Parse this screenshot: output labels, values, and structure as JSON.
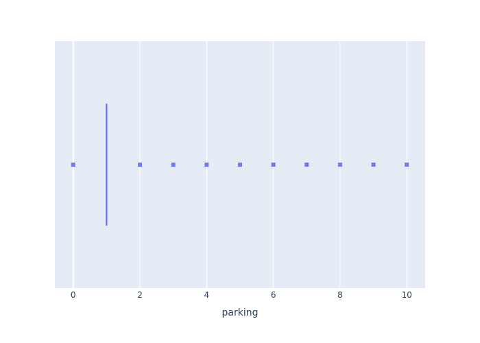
{
  "chart_data": {
    "type": "box",
    "orientation": "horizontal",
    "xlabel": "parking",
    "ylabel": "",
    "title": "",
    "xlim": [
      -0.55,
      10.55
    ],
    "x_ticks": [
      0,
      2,
      4,
      6,
      8,
      10
    ],
    "x_tick_labels": [
      "0",
      "2",
      "4",
      "6",
      "8",
      "10"
    ],
    "grid": true,
    "box": {
      "min": 1,
      "q1": 1,
      "median": 1,
      "q3": 1,
      "max": 1
    },
    "outliers": [
      0,
      2,
      3,
      4,
      5,
      6,
      7,
      8,
      9,
      10
    ],
    "colors": {
      "plot_background": "#e5ecf6",
      "grid": "#ffffff",
      "series": "#636efa",
      "text": "#2a3f5f"
    }
  }
}
